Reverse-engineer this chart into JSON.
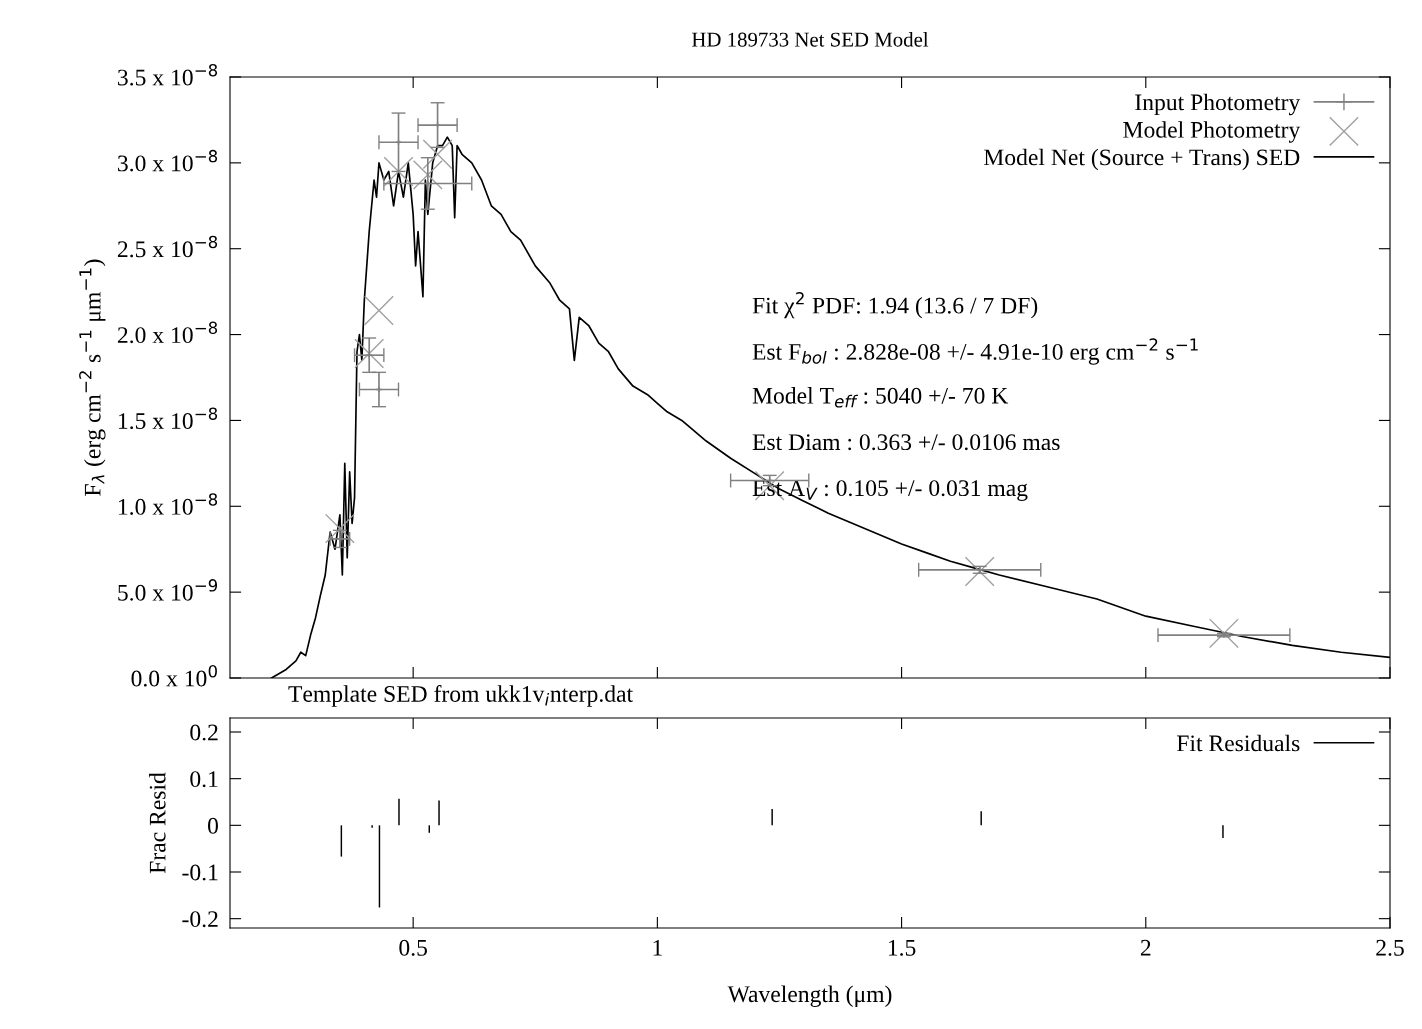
{
  "chart_data": [
    {
      "type": "line",
      "title": "HD 189733 Net SED Model",
      "ylabel": "F$_{λ}$ (erg cm$^{−2}$ s$^{−1}$ μm$^{−1}$)",
      "xlim": [
        0.125,
        2.5
      ],
      "xticks": [
        0.5,
        1,
        1.5,
        2,
        2.5
      ],
      "ylim": [
        0,
        3.5e-08
      ],
      "yticks": [
        {
          "value": 0,
          "label": "0.0 x 10$^{0}$"
        },
        {
          "value": 5e-09,
          "label": "5.0 x 10$^{−9}$"
        },
        {
          "value": 1e-08,
          "label": "1.0 x 10$^{−8}$"
        },
        {
          "value": 1.5e-08,
          "label": "1.5 x 10$^{−8}$"
        },
        {
          "value": 2e-08,
          "label": "2.0 x 10$^{−8}$"
        },
        {
          "value": 2.5e-08,
          "label": "2.5 x 10$^{−8}$"
        },
        {
          "value": 3e-08,
          "label": "3.0 x 10$^{−8}$"
        },
        {
          "value": 3.5e-08,
          "label": "3.5 x 10$^{−8}$"
        }
      ],
      "tick_labels": "y",
      "legend": "top right",
      "grid": false,
      "annotations": [
        "Fit χ$^{2}$ PDF: 1.94 (13.6 / 7 DF)",
        "Est F$_{bol}$ : 2.828e-08 +/- 4.91e-10 erg cm$^{−2}$ s$^{−1}$",
        "Model T$_{eff}$ : 5040 +/- 70 K",
        "Est Diam : 0.363 +/- 0.0106 mas",
        "Est A$_{V}$ : 0.105 +/- 0.031 mag",
        "Template SED from ukk1v$_{i}$nterp.dat"
      ],
      "series": [
        {
          "name": "Input Photometry",
          "type": "scatter",
          "color": "#808080",
          "x": [
            0.35,
            0.41,
            0.43,
            0.47,
            0.53,
            0.55,
            1.23,
            1.66,
            2.16
          ],
          "values": [
            8.1e-09,
            1.88e-08,
            1.68e-08,
            3.12e-08,
            2.88e-08,
            3.22e-08,
            1.15e-08,
            6.3e-09,
            2.5e-09
          ],
          "errors": [
            5e-10,
            1e-09,
            1e-09,
            1.7e-09,
            1.5e-09,
            1.3e-09,
            3e-10,
            2e-10,
            1e-10
          ],
          "xerrors": [
            0.02,
            0.03,
            0.04,
            0.04,
            0.09,
            0.04,
            0.08,
            0.125,
            0.135
          ]
        },
        {
          "name": "Model Photometry",
          "type": "scatter",
          "marker": "cross",
          "color": "#a0a0a0",
          "x": [
            0.35,
            0.41,
            0.43,
            0.47,
            0.53,
            0.55,
            1.23,
            1.66,
            2.16
          ],
          "values": [
            8.7e-09,
            1.89e-08,
            2.14e-08,
            2.95e-08,
            2.93e-08,
            3.05e-08,
            1.12e-08,
            6.2e-09,
            2.6e-09
          ]
        },
        {
          "name": "Model Net (Source + Trans) SED",
          "type": "line",
          "marker": "none",
          "line_style": "solid",
          "color": "#000000",
          "x": [
            0.21,
            0.24,
            0.26,
            0.27,
            0.28,
            0.29,
            0.3,
            0.31,
            0.32,
            0.33,
            0.34,
            0.35,
            0.355,
            0.36,
            0.365,
            0.37,
            0.375,
            0.38,
            0.385,
            0.39,
            0.395,
            0.4,
            0.41,
            0.42,
            0.425,
            0.43,
            0.44,
            0.45,
            0.46,
            0.47,
            0.48,
            0.49,
            0.5,
            0.505,
            0.51,
            0.52,
            0.525,
            0.53,
            0.54,
            0.55,
            0.56,
            0.57,
            0.58,
            0.585,
            0.59,
            0.6,
            0.62,
            0.64,
            0.66,
            0.68,
            0.7,
            0.72,
            0.75,
            0.78,
            0.8,
            0.82,
            0.83,
            0.84,
            0.86,
            0.88,
            0.9,
            0.92,
            0.95,
            0.98,
            1.0,
            1.02,
            1.05,
            1.1,
            1.15,
            1.2,
            1.25,
            1.3,
            1.35,
            1.4,
            1.45,
            1.5,
            1.55,
            1.6,
            1.65,
            1.7,
            1.8,
            1.9,
            2.0,
            2.1,
            2.2,
            2.3,
            2.4,
            2.5
          ],
          "values": [
            0,
            5e-10,
            1e-09,
            1.5e-09,
            1.3e-09,
            2.5e-09,
            3.5e-09,
            4.8e-09,
            6e-09,
            8.5e-09,
            7.5e-09,
            9.5e-09,
            6e-09,
            1.25e-08,
            7e-09,
            1.2e-08,
            9e-09,
            1.05e-08,
            1.9e-08,
            2e-08,
            1.85e-08,
            2.2e-08,
            2.6e-08,
            2.9e-08,
            2.8e-08,
            3e-08,
            2.9e-08,
            2.95e-08,
            2.75e-08,
            2.95e-08,
            2.8e-08,
            3e-08,
            2.7e-08,
            2.4e-08,
            2.6e-08,
            2.22e-08,
            2.9e-08,
            2.7e-08,
            3e-08,
            3.1e-08,
            3.1e-08,
            3.15e-08,
            3.1e-08,
            2.68e-08,
            3.1e-08,
            3.05e-08,
            3e-08,
            2.9e-08,
            2.75e-08,
            2.7e-08,
            2.6e-08,
            2.55e-08,
            2.4e-08,
            2.3e-08,
            2.2e-08,
            2.15e-08,
            1.85e-08,
            2.1e-08,
            2.05e-08,
            1.95e-08,
            1.9e-08,
            1.8e-08,
            1.7e-08,
            1.65e-08,
            1.6e-08,
            1.55e-08,
            1.5e-08,
            1.38e-08,
            1.28e-08,
            1.19e-08,
            1.1e-08,
            1.03e-08,
            9.6e-09,
            9e-09,
            8.4e-09,
            7.8e-09,
            7.3e-09,
            6.8e-09,
            6.4e-09,
            6e-09,
            5.3e-09,
            4.6e-09,
            3.6e-09,
            3e-09,
            2.4e-09,
            1.9e-09,
            1.5e-09,
            1.2e-09
          ]
        }
      ]
    },
    {
      "type": "bar",
      "xlabel": "Wavelength (μm)",
      "ylabel": "Frac Resid",
      "legend": "top right",
      "grid": false,
      "xlim": [
        0.125,
        2.5
      ],
      "xticks": [
        0.5,
        1,
        1.5,
        2,
        2.5
      ],
      "ylim": [
        -0.22,
        0.23
      ],
      "yticks": [
        -0.2,
        -0.1,
        0,
        0.1,
        0.2
      ],
      "series": [
        {
          "name": "Fit Residuals",
          "color": "#000000",
          "x": [
            0.353,
            0.416,
            0.431,
            0.471,
            0.533,
            0.553,
            1.235,
            1.663,
            2.158
          ],
          "values": [
            -0.067,
            -0.005,
            -0.176,
            0.057,
            -0.016,
            0.053,
            0.035,
            0.03,
            -0.027
          ]
        }
      ]
    }
  ]
}
